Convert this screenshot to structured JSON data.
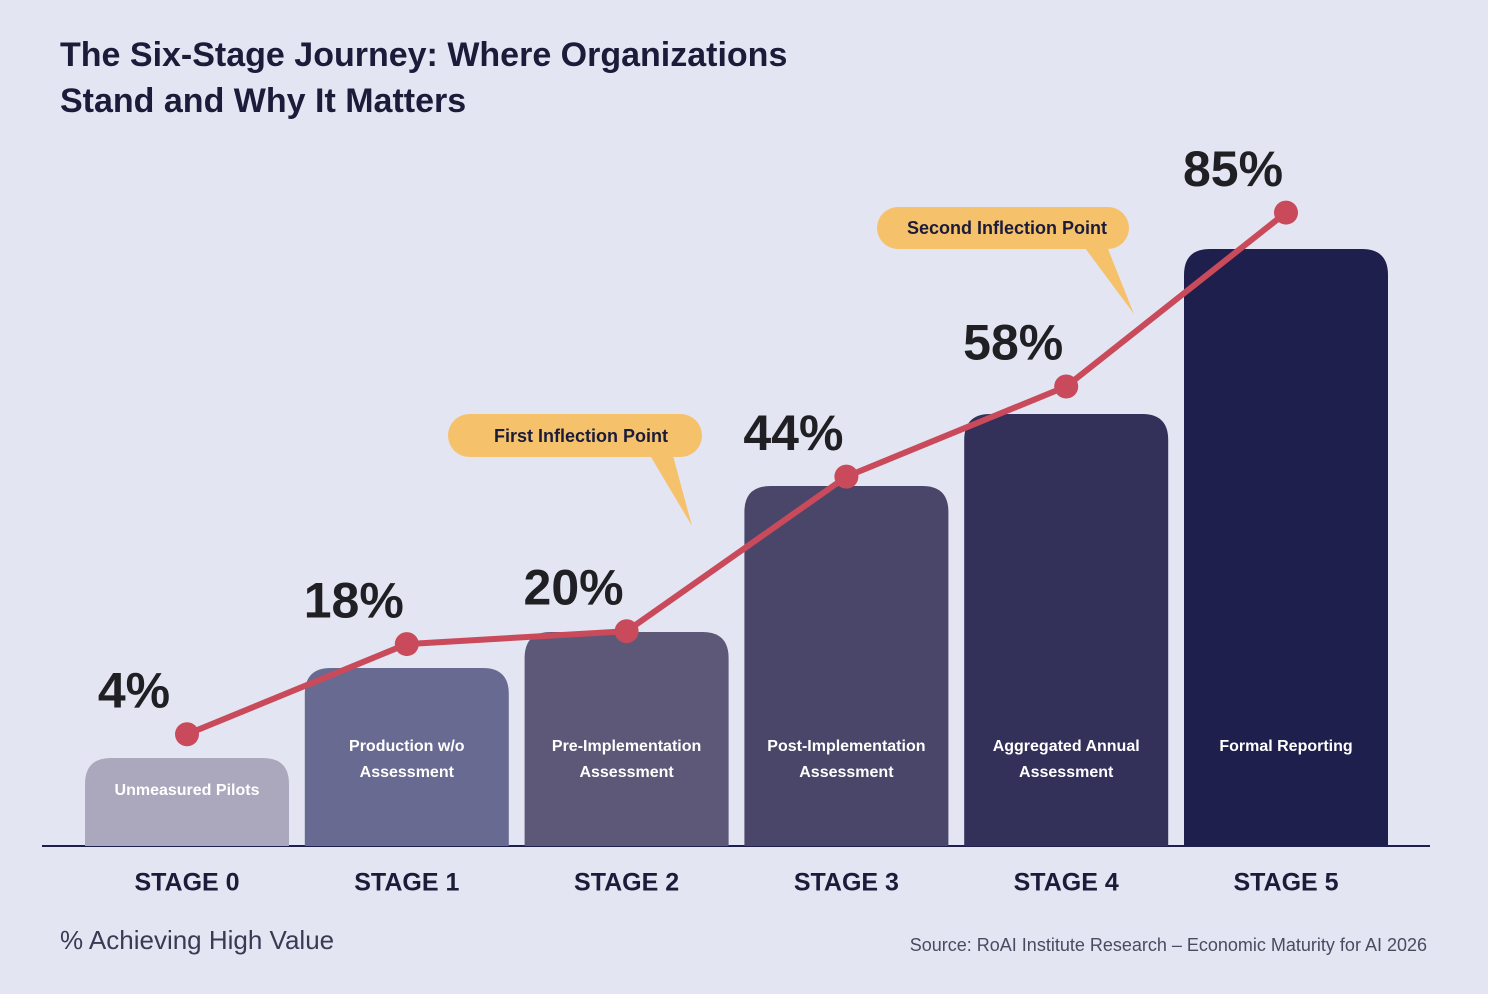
{
  "chart_data": {
    "type": "line",
    "title": "The Six-Stage Journey: Where Organizations Stand and Why It Matters",
    "categories": [
      "STAGE 0",
      "STAGE 1",
      "STAGE 2",
      "STAGE 3",
      "STAGE 4",
      "STAGE 5"
    ],
    "stage_labels": [
      "Unmeasured Pilots",
      "Production w/o Assessment",
      "Pre-Implementation Assessment",
      "Post-Implementation Assessment",
      "Aggregated Annual Assessment",
      "Formal Reporting"
    ],
    "stage_colors": [
      "#aba8bd",
      "#696a91",
      "#5d5878",
      "#4a4669",
      "#33305a",
      "#1f1f4d"
    ],
    "series": [
      {
        "name": "% Achieving High Value",
        "color": "#c94a5a",
        "values": [
          4,
          18,
          20,
          44,
          58,
          85
        ],
        "value_labels": [
          "4%",
          "18%",
          "20%",
          "44%",
          "58%",
          "85%"
        ]
      }
    ],
    "annotations": [
      {
        "text": "First Inflection Point"
      },
      {
        "text": "Second Inflection Point"
      }
    ],
    "source": "Source: RoAI Institute Research – Economic Maturity for AI 2026"
  }
}
